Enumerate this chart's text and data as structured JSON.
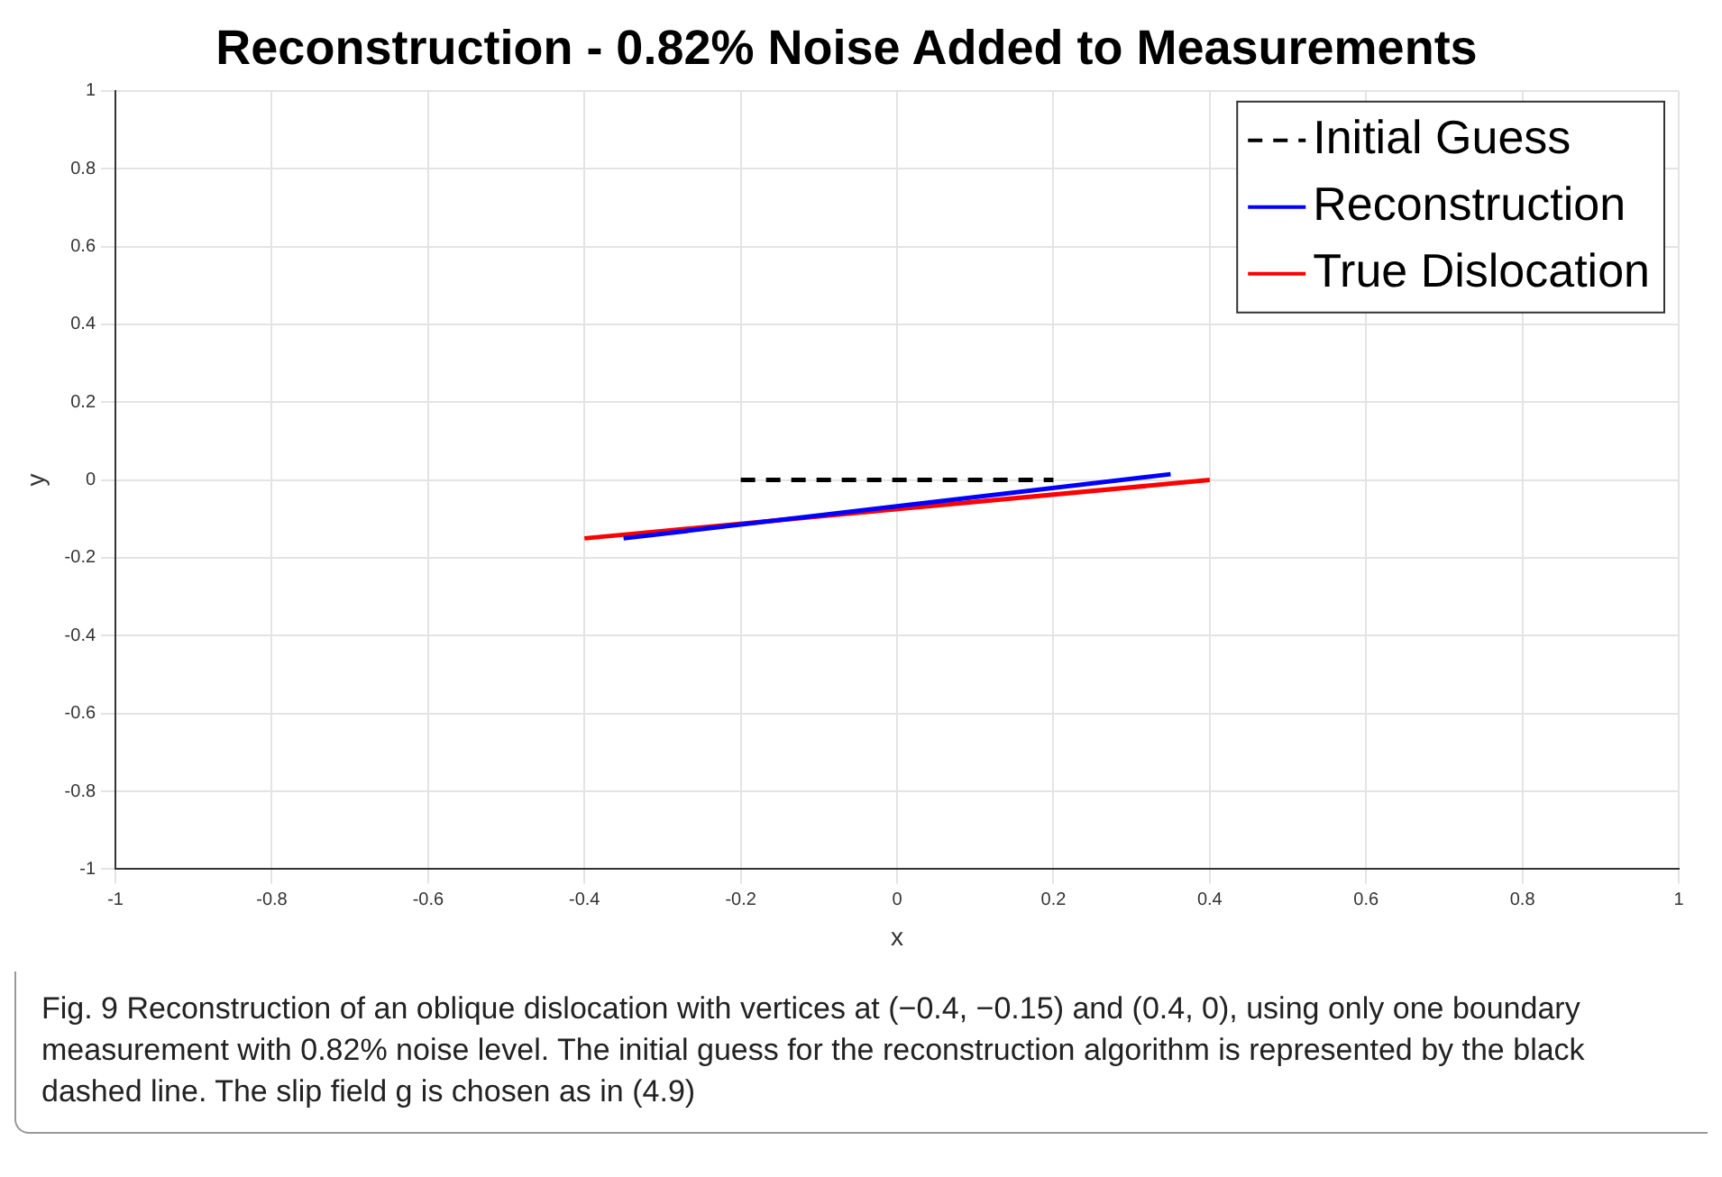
{
  "chart_data": {
    "type": "line",
    "title": "Reconstruction - 0.82% Noise Added to Measurements",
    "xlabel": "x",
    "ylabel": "y",
    "series": [
      {
        "name": "Initial Guess",
        "color": "#000000",
        "line_style": "dashed",
        "x": [
          -0.2,
          0.2
        ],
        "values": [
          0,
          0
        ]
      },
      {
        "name": "Reconstruction",
        "color": "#0000ff",
        "line_style": "solid",
        "x": [
          -0.35,
          0.35
        ],
        "values": [
          -0.15,
          0.015
        ]
      },
      {
        "name": "True Dislocation",
        "color": "#ff0000",
        "line_style": "solid",
        "x": [
          -0.4,
          0.4
        ],
        "values": [
          -0.15,
          0
        ]
      }
    ],
    "xlim": [
      -1,
      1
    ],
    "ylim": [
      -1,
      1
    ],
    "xticks": [
      -1,
      -0.8,
      -0.6,
      -0.4,
      -0.2,
      0,
      0.2,
      0.4,
      0.6,
      0.8,
      1
    ],
    "yticks": [
      -1,
      -0.8,
      -0.6,
      -0.4,
      -0.2,
      0,
      0.2,
      0.4,
      0.6,
      0.8,
      1
    ],
    "grid": true,
    "legend": "top right",
    "marker": "none",
    "annotations": [
      "Fig. 9 Reconstruction of an oblique dislocation with vertices at (−0.4, −0.15) and (0.4, 0), using only one boundary measurement with 0.82% noise level. The initial guess for the reconstruction algorithm is represented by the black dashed line. The slip field g is chosen as in (4.9)"
    ]
  }
}
